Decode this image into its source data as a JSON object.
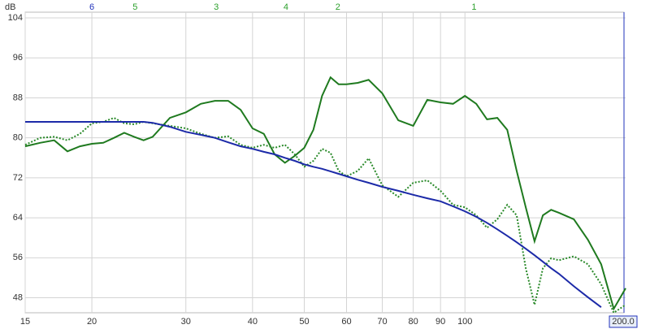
{
  "chart_data": {
    "type": "line",
    "y_label": "dB",
    "log_x": true,
    "grid": true,
    "xlim": [
      15,
      200
    ],
    "ylim": [
      45,
      104
    ],
    "xticks": [
      15,
      20,
      30,
      40,
      50,
      60,
      70,
      80,
      90,
      100,
      {
        "value": 200,
        "label": "200.0"
      }
    ],
    "yticks": [
      48,
      56,
      64,
      72,
      80,
      88,
      96,
      104
    ],
    "markers": [
      {
        "label": "6",
        "x": 20,
        "color": "#2233bb"
      },
      {
        "label": "5",
        "x": 24.1,
        "color": "#2ca02c"
      },
      {
        "label": "3",
        "x": 34.2,
        "color": "#2ca02c"
      },
      {
        "label": "4",
        "x": 46.2,
        "color": "#2ca02c"
      },
      {
        "label": "2",
        "x": 57.8,
        "color": "#2ca02c"
      },
      {
        "label": "1",
        "x": 104,
        "color": "#2ca02c"
      }
    ],
    "x": [
      15,
      16,
      17,
      18,
      19,
      20,
      21,
      22,
      23,
      24,
      25,
      26,
      28,
      30,
      32,
      34,
      36,
      38,
      40,
      42,
      44,
      46,
      48,
      50,
      52,
      54,
      56,
      58,
      60,
      63,
      66,
      70,
      75,
      80,
      85,
      90,
      95,
      100,
      105,
      110,
      115,
      120,
      125,
      130,
      135,
      140,
      145,
      150,
      160,
      170,
      180,
      190,
      200
    ],
    "series": [
      {
        "color": "#1f7a1f",
        "dash": false,
        "values": [
          78.3,
          79,
          79.5,
          77.3,
          78.3,
          78.8,
          79,
          80,
          81,
          80.2,
          79.5,
          80.2,
          84,
          85.1,
          86.8,
          87.4,
          87.4,
          85.6,
          81.9,
          80.8,
          76.7,
          75,
          76.4,
          78,
          81.6,
          88.4,
          92.1,
          90.7,
          90.7,
          91,
          91.6,
          88.9,
          83.5,
          82.4,
          87.6,
          87.1,
          86.8,
          88.4,
          86.8,
          83.7,
          84,
          81.6,
          73.4,
          66.1,
          59.3,
          64.5,
          65.6,
          65,
          63.7,
          59.6,
          54.7,
          45.8,
          49.9
        ]
      },
      {
        "color": "#2a8a2a",
        "dash": true,
        "values": [
          78.6,
          80,
          80.2,
          79.5,
          80.8,
          82.9,
          83.2,
          84,
          82.9,
          82.7,
          83.2,
          82.9,
          82.4,
          81.9,
          80.8,
          80,
          80.3,
          78.6,
          78,
          78.6,
          78,
          78.6,
          76.7,
          74.2,
          75.4,
          77.8,
          77,
          73.4,
          72.3,
          73.4,
          75.9,
          70.5,
          68.2,
          71,
          71.5,
          69.4,
          66.6,
          66.1,
          64.5,
          62,
          63.7,
          66.6,
          64.5,
          53.9,
          46.6,
          53.9,
          55.9,
          55.5,
          56.3,
          54.7,
          50.7,
          45,
          46.6
        ]
      },
      {
        "color": "#1c2aa8",
        "dash": false,
        "values": [
          83.2,
          83.2,
          83.2,
          83.2,
          83.2,
          83.2,
          83.2,
          83.2,
          83.2,
          83.2,
          83.2,
          83,
          82.2,
          81.2,
          80.6,
          80,
          79.1,
          78.3,
          77.8,
          77.2,
          76.7,
          76,
          75.4,
          74.7,
          74.2,
          73.8,
          73.3,
          72.8,
          72.3,
          71.6,
          71,
          70.2,
          69.4,
          68.6,
          67.9,
          67.3,
          66.3,
          65.3,
          64.2,
          63,
          61.7,
          60.4,
          59.1,
          57.8,
          56.5,
          55.2,
          53.9,
          52.8,
          50.3,
          48.1,
          46.1,
          null,
          null
        ]
      }
    ]
  }
}
